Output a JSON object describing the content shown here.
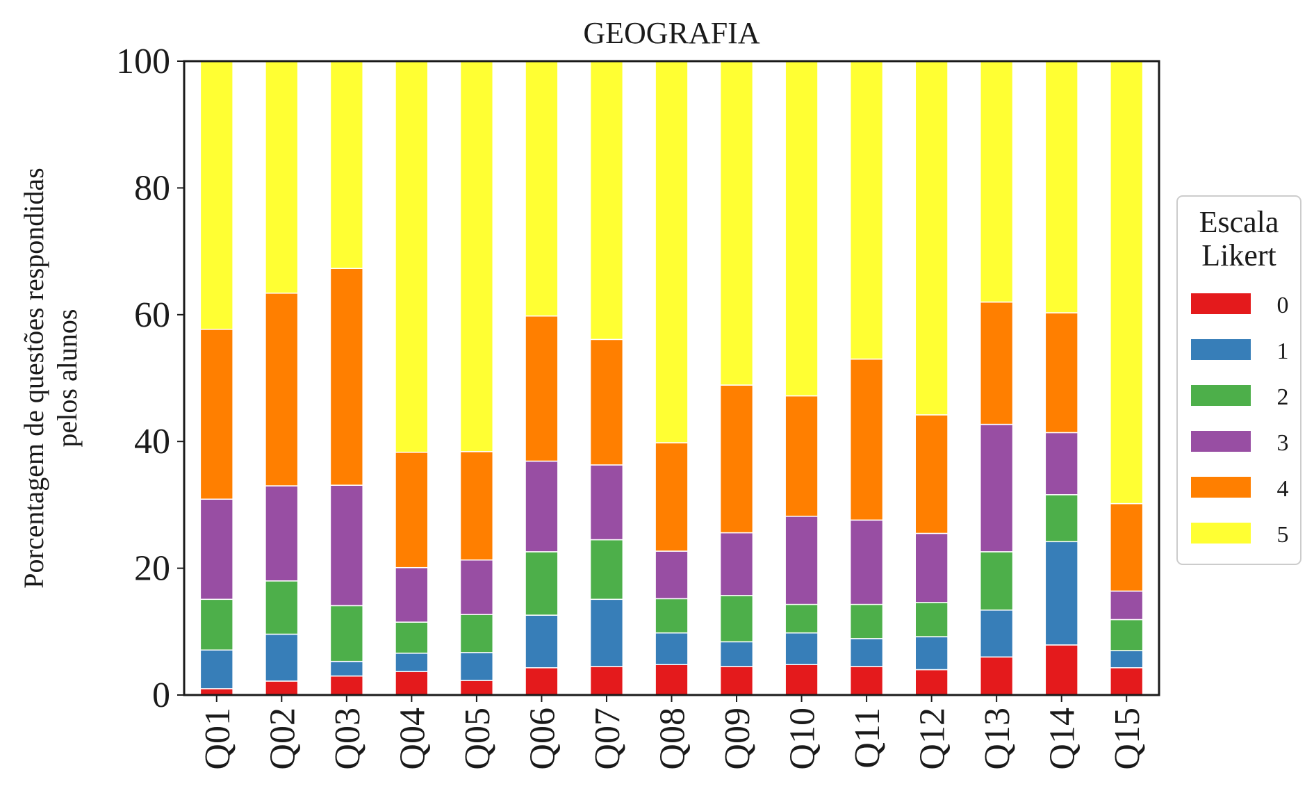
{
  "chart_data": {
    "type": "bar",
    "stacked": true,
    "title": "GEOGRAFIA",
    "xlabel": "",
    "ylabel": "Porcentagem de questões respondidas pelos alunos",
    "ylabel_lines": [
      "Porcentagem de questões respondidas",
      "pelos alunos"
    ],
    "ylim": [
      0,
      100
    ],
    "yticks": [
      0,
      20,
      40,
      60,
      80,
      100
    ],
    "grid": false,
    "categories": [
      "Q01",
      "Q02",
      "Q03",
      "Q04",
      "Q05",
      "Q06",
      "Q07",
      "Q08",
      "Q09",
      "Q10",
      "Q11",
      "Q12",
      "Q13",
      "Q14",
      "Q15"
    ],
    "legend": {
      "title_lines": [
        "Escala",
        "Likert"
      ],
      "placement": "right"
    },
    "series": [
      {
        "name": "0",
        "color": "#e41a1c",
        "values": [
          1.0,
          2.2,
          3.0,
          3.7,
          2.3,
          4.3,
          4.5,
          4.8,
          4.5,
          4.8,
          4.5,
          4.0,
          6.0,
          7.9,
          4.3
        ]
      },
      {
        "name": "1",
        "color": "#377eb8",
        "values": [
          6.1,
          7.4,
          2.3,
          2.9,
          4.4,
          8.3,
          10.6,
          5.0,
          3.9,
          5.0,
          4.4,
          5.2,
          7.4,
          16.3,
          2.7
        ]
      },
      {
        "name": "2",
        "color": "#4daf4a",
        "values": [
          8.0,
          8.4,
          8.8,
          4.9,
          6.0,
          10.0,
          9.4,
          5.4,
          7.3,
          4.5,
          5.4,
          5.4,
          9.2,
          7.4,
          4.9
        ]
      },
      {
        "name": "3",
        "color": "#984ea3",
        "values": [
          15.8,
          15.0,
          19.0,
          8.6,
          8.6,
          14.3,
          11.8,
          7.5,
          9.9,
          13.9,
          13.3,
          10.9,
          20.1,
          9.8,
          4.5
        ]
      },
      {
        "name": "4",
        "color": "#ff7f00",
        "values": [
          26.8,
          30.4,
          34.2,
          18.2,
          17.1,
          22.9,
          19.8,
          17.1,
          23.3,
          19.0,
          25.4,
          18.7,
          19.3,
          18.9,
          13.8
        ]
      },
      {
        "name": "5",
        "color": "#ffff33",
        "values": [
          42.3,
          36.6,
          32.7,
          61.7,
          61.6,
          40.2,
          43.9,
          60.2,
          51.1,
          52.8,
          47.0,
          55.8,
          38.0,
          39.7,
          69.8
        ]
      }
    ]
  }
}
